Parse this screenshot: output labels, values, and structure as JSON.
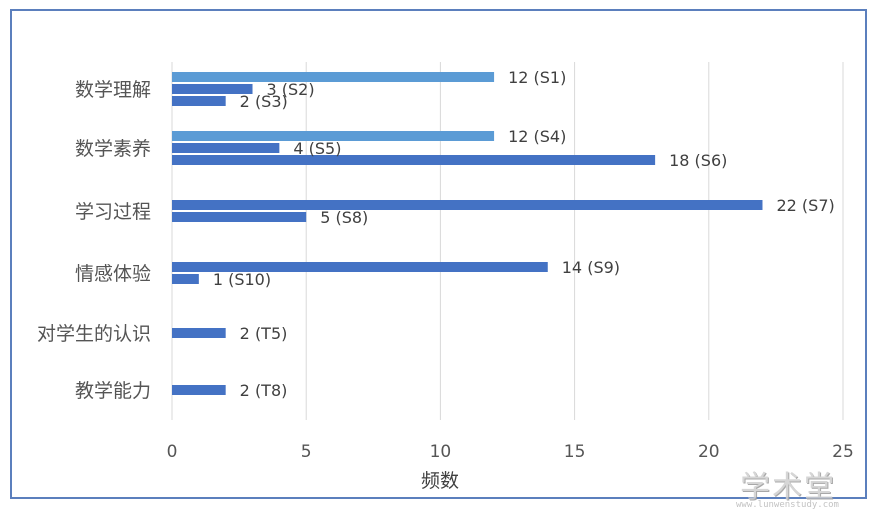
{
  "chart_data": {
    "type": "bar",
    "orientation": "horizontal",
    "xlabel": "频数",
    "xlim": [
      0,
      25
    ],
    "xticks": [
      0,
      5,
      10,
      15,
      20,
      25
    ],
    "grid": true,
    "legend": "none",
    "colors": {
      "light": "#5b9bd5",
      "dark": "#4472c4"
    },
    "categories": [
      {
        "label": "数学理解",
        "bars": [
          {
            "value": 12,
            "label": "12 (S1)",
            "shade": "light"
          },
          {
            "value": 3,
            "label": "3 (S2)",
            "shade": "dark"
          },
          {
            "value": 2,
            "label": "2 (S3)",
            "shade": "dark"
          }
        ]
      },
      {
        "label": "数学素养",
        "bars": [
          {
            "value": 12,
            "label": "12 (S4)",
            "shade": "light"
          },
          {
            "value": 4,
            "label": "4 (S5)",
            "shade": "dark"
          },
          {
            "value": 18,
            "label": "18 (S6)",
            "shade": "dark"
          }
        ]
      },
      {
        "label": "学习过程",
        "bars": [
          {
            "value": 22,
            "label": "22 (S7)",
            "shade": "dark"
          },
          {
            "value": 5,
            "label": "5 (S8)",
            "shade": "dark"
          }
        ]
      },
      {
        "label": "情感体验",
        "bars": [
          {
            "value": 14,
            "label": "14 (S9)",
            "shade": "dark"
          },
          {
            "value": 1,
            "label": "1 (S10)",
            "shade": "dark"
          }
        ]
      },
      {
        "label": "对学生的认识",
        "bars": [
          {
            "value": 2,
            "label": "2 (T5)",
            "shade": "dark"
          }
        ]
      },
      {
        "label": "教学能力",
        "bars": [
          {
            "value": 2,
            "label": "2 (T8)",
            "shade": "dark"
          }
        ]
      }
    ]
  },
  "watermark": {
    "main": "学术堂",
    "sub": "www.lunwenstudy.com"
  }
}
